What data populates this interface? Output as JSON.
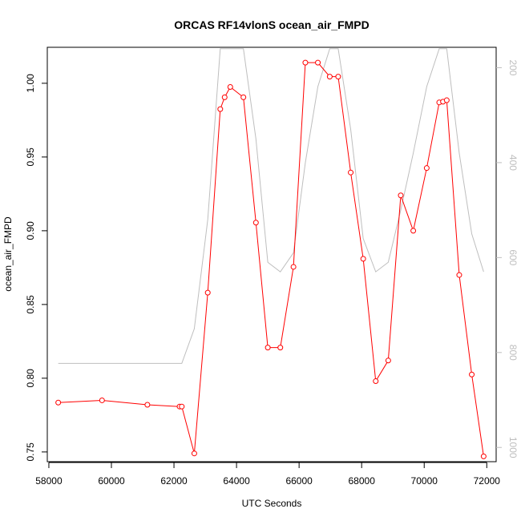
{
  "chart_data": {
    "type": "line",
    "title": "ORCAS RF14vlonS ocean_air_FMPD",
    "xlabel": "UTC Seconds",
    "ylabel": "ocean_air_FMPD",
    "xlim": [
      57950,
      72300
    ],
    "ylim": [
      0.7434,
      1.0244
    ],
    "x_ticks": [
      58000,
      60000,
      62000,
      64000,
      66000,
      68000,
      70000,
      72000
    ],
    "y_ticks": [
      0.75,
      0.8,
      0.85,
      0.9,
      0.95,
      1.0
    ],
    "y_tick_labels": [
      "0.75",
      "0.80",
      "0.85",
      "0.90",
      "0.95",
      "1.00"
    ],
    "y2_ticks": [
      200,
      400,
      600,
      800,
      1000
    ],
    "y2_lim": [
      1030,
      157
    ],
    "grid": false,
    "series": [
      {
        "color": "#ff0000",
        "marker": "open-circle",
        "axis": "left",
        "x": [
          58300,
          59700,
          61150,
          62180,
          62250,
          62650,
          63080,
          63480,
          63620,
          63800,
          64220,
          64620,
          65000,
          65400,
          65820,
          66200,
          66600,
          66980,
          67250,
          67650,
          68050,
          68450,
          68850,
          69250,
          69650,
          70080,
          70480,
          70600,
          70720,
          71120,
          71520,
          71900
        ],
        "y": [
          0.7835,
          0.785,
          0.782,
          0.7808,
          0.7808,
          0.749,
          0.858,
          0.9825,
          0.9905,
          0.9975,
          0.9905,
          0.9055,
          0.8208,
          0.8208,
          0.8755,
          1.014,
          1.014,
          1.0045,
          1.0045,
          0.9395,
          0.881,
          0.798,
          0.812,
          0.924,
          0.9,
          0.9425,
          0.987,
          0.9875,
          0.9885,
          0.87,
          0.8025,
          0.747
        ]
      },
      {
        "color": "#bebebe",
        "marker": "none",
        "axis": "right",
        "x": [
          58300,
          59700,
          61150,
          62250,
          62650,
          63080,
          63480,
          63650,
          64220,
          64620,
          65000,
          65400,
          65820,
          66200,
          66600,
          66980,
          67250,
          67650,
          68050,
          68450,
          68850,
          69250,
          69650,
          70080,
          70480,
          70600,
          70720,
          71120,
          71520,
          71900
        ],
        "y": [
          823,
          823,
          823,
          823,
          750,
          520,
          160,
          160,
          160,
          350,
          610,
          630,
          590,
          400,
          240,
          160,
          160,
          330,
          560,
          630,
          610,
          500,
          380,
          240,
          160,
          160,
          160,
          380,
          550,
          630
        ]
      }
    ]
  }
}
